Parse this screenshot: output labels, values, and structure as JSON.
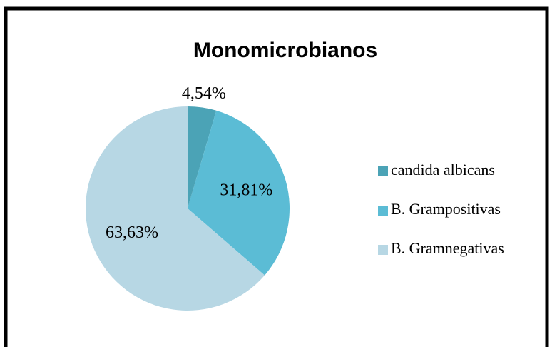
{
  "chart_data": {
    "type": "pie",
    "title": "Monomicrobianos",
    "categories": [
      "candida albicans",
      "B. Grampositivas",
      "B. Gramnegativas"
    ],
    "values": [
      4.54,
      31.81,
      63.63
    ],
    "value_labels": [
      "4,54%",
      "31,81%",
      "63,63%"
    ],
    "colors": [
      "#4ba3b6",
      "#5bbcd5",
      "#b7d7e4"
    ],
    "legend": "right"
  }
}
